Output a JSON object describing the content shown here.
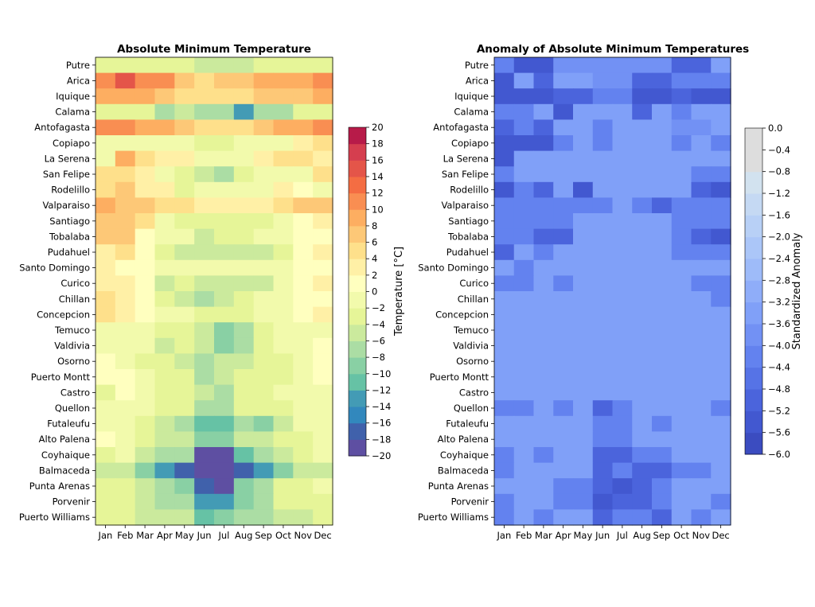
{
  "chart_data": [
    {
      "type": "heatmap",
      "title": "Absolute Minimum Temperature",
      "x_categories": [
        "Jan",
        "Feb",
        "Mar",
        "Apr",
        "May",
        "Jun",
        "Jul",
        "Aug",
        "Sep",
        "Oct",
        "Nov",
        "Dec"
      ],
      "y_categories": [
        "Putre",
        "Arica",
        "Iquique",
        "Calama",
        "Antofagasta",
        "Copiapo",
        "La Serena",
        "San Felipe",
        "Rodelillo",
        "Valparaiso",
        "Santiago",
        "Tobalaba",
        "Pudahuel",
        "Santo Domingo",
        "Curico",
        "Chillan",
        "Concepcion",
        "Temuco",
        "Valdivia",
        "Osorno",
        "Puerto Montt",
        "Castro",
        "Quellon",
        "Futaleufu",
        "Alto Palena",
        "Coyhaique",
        "Balmaceda",
        "Punta Arenas",
        "Porvenir",
        "Puerto Williams"
      ],
      "values": [
        [
          -3,
          -3,
          -4,
          -4,
          -4,
          -5,
          -5,
          -5,
          -4,
          -4,
          -4,
          -3
        ],
        [
          11,
          15,
          11,
          11,
          7,
          5,
          7,
          7,
          9,
          9,
          9,
          11
        ],
        [
          9,
          9,
          9,
          7,
          5,
          5,
          5,
          5,
          7,
          7,
          7,
          9
        ],
        [
          -3,
          -3,
          -3,
          -7,
          -5,
          -8,
          -8,
          -13,
          -7,
          -7,
          -3,
          -3
        ],
        [
          11,
          11,
          9,
          9,
          7,
          5,
          5,
          5,
          7,
          9,
          9,
          11
        ],
        [
          -1,
          -1,
          -1,
          -1,
          -1,
          -3,
          -3,
          -1,
          -1,
          -1,
          3,
          5
        ],
        [
          -1,
          9,
          5,
          3,
          3,
          -1,
          -1,
          -1,
          3,
          5,
          5,
          3
        ],
        [
          5,
          5,
          3,
          -2,
          -4,
          -5,
          -7,
          -4,
          -2,
          -1,
          -1,
          5
        ],
        [
          5,
          7,
          3,
          3,
          -4,
          -2,
          -2,
          -2,
          -2,
          3,
          1,
          -1
        ],
        [
          9,
          7,
          7,
          5,
          5,
          3,
          3,
          3,
          3,
          5,
          7,
          7
        ],
        [
          7,
          7,
          5,
          -2,
          -4,
          -4,
          -4,
          -4,
          -4,
          -1,
          1,
          3
        ],
        [
          7,
          7,
          1,
          -2,
          -1,
          -5,
          -3,
          -3,
          -1,
          -1,
          1,
          1
        ],
        [
          3,
          5,
          1,
          -3,
          -5,
          -6,
          -6,
          -6,
          -5,
          -3,
          1,
          3
        ],
        [
          3,
          1,
          1,
          -1,
          -2,
          -2,
          -2,
          -2,
          -2,
          -1,
          1,
          1
        ],
        [
          3,
          3,
          1,
          -6,
          -4,
          -6,
          -6,
          -6,
          -5,
          -1,
          1,
          3
        ],
        [
          5,
          3,
          1,
          -3,
          -5,
          -8,
          -6,
          -4,
          -2,
          -1,
          1,
          1
        ],
        [
          5,
          3,
          1,
          -1,
          -1,
          -3,
          -3,
          -3,
          -1,
          -1,
          1,
          3
        ],
        [
          -1,
          -1,
          -1,
          -4,
          -4,
          -6,
          -10,
          -7,
          -4,
          -2,
          -2,
          -1
        ],
        [
          -1,
          -1,
          -1,
          -5,
          -4,
          -6,
          -10,
          -7,
          -4,
          -2,
          -1,
          1
        ],
        [
          1,
          -1,
          -3,
          -4,
          -5,
          -8,
          -6,
          -5,
          -4,
          -3,
          -1,
          1
        ],
        [
          1,
          1,
          -1,
          -3,
          -4,
          -8,
          -6,
          -4,
          -4,
          -3,
          -1,
          1
        ],
        [
          -3,
          1,
          -1,
          -3,
          -4,
          -6,
          -8,
          -4,
          -3,
          -1,
          -1,
          -1
        ],
        [
          -1,
          -1,
          -1,
          -3,
          -4,
          -8,
          -8,
          -4,
          -4,
          -3,
          -2,
          -1
        ],
        [
          -1,
          -1,
          -3,
          -6,
          -8,
          -12,
          -12,
          -8,
          -10,
          -5,
          -2,
          -1
        ],
        [
          1,
          -1,
          -3,
          -6,
          -6,
          -10,
          -10,
          -6,
          -6,
          -3,
          -4,
          -1
        ],
        [
          -4,
          -1,
          -6,
          -8,
          -8,
          -20,
          -20,
          -12,
          -8,
          -5,
          -3,
          -1
        ],
        [
          -6,
          -6,
          -10,
          -14,
          -18,
          -20,
          -20,
          -18,
          -14,
          -10,
          -6,
          -6
        ],
        [
          -3,
          -3,
          -5,
          -8,
          -10,
          -18,
          -20,
          -10,
          -7,
          -4,
          -3,
          -1
        ],
        [
          -3,
          -4,
          -5,
          -7,
          -8,
          -14,
          -14,
          -10,
          -7,
          -4,
          -3,
          -3
        ],
        [
          -4,
          -4,
          -5,
          -5,
          -6,
          -12,
          -10,
          -8,
          -8,
          -5,
          -6,
          -3
        ]
      ],
      "colorbar": {
        "label": "Temperature [°C]",
        "vmin": -20,
        "vmax": 20,
        "step": 2,
        "ticks": [
          "20",
          "18",
          "16",
          "14",
          "12",
          "10",
          "8",
          "6",
          "4",
          "2",
          "0",
          "−2",
          "−4",
          "−6",
          "−8",
          "−10",
          "−12",
          "−14",
          "−16",
          "−18",
          "−20"
        ],
        "colors": [
          "#5e4fa2",
          "#4061ab",
          "#3288bd",
          "#439bb5",
          "#66c2a5",
          "#89d0a4",
          "#abdda4",
          "#cbea9d",
          "#e6f598",
          "#f2faac",
          "#ffffbf",
          "#fff0a6",
          "#fee08b",
          "#fdc877",
          "#fdae61",
          "#f98e52",
          "#f46d43",
          "#e45549",
          "#d53e4f",
          "#b71b49",
          "#9e0142"
        ],
        "colormap": "Spectral_r"
      }
    },
    {
      "type": "heatmap",
      "title": "Anomaly of Absolute Minimum Temperatures",
      "x_categories": [
        "Jan",
        "Feb",
        "Mar",
        "Apr",
        "May",
        "Jun",
        "Jul",
        "Aug",
        "Sep",
        "Oct",
        "Nov",
        "Dec"
      ],
      "y_categories": [
        "Putre",
        "Arica",
        "Iquique",
        "Calama",
        "Antofagasta",
        "Copiapo",
        "La Serena",
        "San Felipe",
        "Rodelillo",
        "Valparaiso",
        "Santiago",
        "Tobalaba",
        "Pudahuel",
        "Santo Domingo",
        "Curico",
        "Chillan",
        "Concepcion",
        "Temuco",
        "Valdivia",
        "Osorno",
        "Puerto Montt",
        "Castro",
        "Quellon",
        "Futaleufu",
        "Alto Palena",
        "Coyhaique",
        "Balmaceda",
        "Punta Arenas",
        "Porvenir",
        "Puerto Williams"
      ],
      "values": [
        [
          -4.2,
          -5.3,
          -5.3,
          -4.0,
          -4.0,
          -4.0,
          -4.0,
          -4.0,
          -4.0,
          -4.9,
          -4.9,
          -3.3
        ],
        [
          -5.3,
          -3.3,
          -4.9,
          -3.3,
          -3.3,
          -4.0,
          -4.0,
          -4.9,
          -4.9,
          -4.2,
          -4.2,
          -4.2
        ],
        [
          -5.3,
          -5.3,
          -5.3,
          -4.9,
          -4.9,
          -4.2,
          -4.2,
          -5.3,
          -5.3,
          -4.9,
          -5.3,
          -5.3
        ],
        [
          -4.2,
          -4.2,
          -3.6,
          -5.3,
          -3.3,
          -3.6,
          -3.6,
          -4.9,
          -3.6,
          -4.2,
          -3.6,
          -3.6
        ],
        [
          -4.9,
          -4.2,
          -4.9,
          -3.6,
          -3.6,
          -4.2,
          -3.6,
          -3.6,
          -3.6,
          -4.0,
          -4.0,
          -3.6
        ],
        [
          -5.3,
          -5.3,
          -5.3,
          -4.2,
          -3.6,
          -4.2,
          -3.6,
          -3.6,
          -3.6,
          -4.2,
          -3.6,
          -4.2
        ],
        [
          -5.3,
          -3.6,
          -3.6,
          -3.6,
          -3.6,
          -3.6,
          -3.6,
          -3.6,
          -3.6,
          -3.6,
          -3.6,
          -3.6
        ],
        [
          -4.2,
          -3.6,
          -3.6,
          -3.6,
          -3.3,
          -3.3,
          -3.6,
          -3.3,
          -3.6,
          -3.6,
          -4.2,
          -4.2
        ],
        [
          -5.6,
          -4.2,
          -4.9,
          -3.6,
          -5.6,
          -3.6,
          -3.6,
          -3.6,
          -3.6,
          -3.6,
          -4.9,
          -5.6
        ],
        [
          -4.2,
          -4.2,
          -4.2,
          -4.2,
          -4.2,
          -4.2,
          -3.6,
          -4.2,
          -4.9,
          -4.2,
          -4.2,
          -4.2
        ],
        [
          -4.2,
          -4.2,
          -4.2,
          -4.2,
          -3.6,
          -3.3,
          -3.3,
          -3.6,
          -3.6,
          -4.2,
          -4.2,
          -4.2
        ],
        [
          -4.2,
          -4.2,
          -4.9,
          -4.9,
          -3.6,
          -3.6,
          -3.3,
          -3.6,
          -3.6,
          -4.2,
          -4.9,
          -5.6
        ],
        [
          -4.9,
          -3.6,
          -4.2,
          -3.6,
          -3.6,
          -3.3,
          -3.3,
          -3.6,
          -3.6,
          -4.2,
          -4.2,
          -4.2
        ],
        [
          -3.6,
          -4.2,
          -3.6,
          -3.3,
          -3.6,
          -3.3,
          -3.3,
          -3.6,
          -3.6,
          -3.6,
          -3.6,
          -3.6
        ],
        [
          -4.2,
          -4.2,
          -3.6,
          -4.2,
          -3.3,
          -3.3,
          -3.3,
          -3.6,
          -3.6,
          -3.6,
          -4.2,
          -4.2
        ],
        [
          -3.6,
          -3.6,
          -3.6,
          -3.3,
          -3.6,
          -3.6,
          -3.3,
          -3.3,
          -3.3,
          -3.6,
          -3.6,
          -4.2
        ],
        [
          -3.6,
          -3.6,
          -3.6,
          -3.6,
          -3.3,
          -3.3,
          -3.3,
          -3.3,
          -3.3,
          -3.6,
          -3.6,
          -3.6
        ],
        [
          -3.6,
          -3.6,
          -3.3,
          -3.6,
          -3.6,
          -3.6,
          -3.6,
          -3.6,
          -3.3,
          -3.3,
          -3.6,
          -3.3
        ],
        [
          -3.6,
          -3.3,
          -3.3,
          -3.6,
          -3.6,
          -3.6,
          -3.6,
          -3.6,
          -3.3,
          -3.3,
          -3.3,
          -3.6
        ],
        [
          -3.3,
          -3.6,
          -3.3,
          -3.3,
          -3.6,
          -3.6,
          -3.6,
          -3.6,
          -3.6,
          -3.3,
          -3.3,
          -3.6
        ],
        [
          -3.6,
          -3.6,
          -3.3,
          -3.3,
          -3.6,
          -3.6,
          -3.3,
          -3.3,
          -3.3,
          -3.3,
          -3.3,
          -3.6
        ],
        [
          -3.6,
          -3.6,
          -3.3,
          -3.6,
          -3.6,
          -3.6,
          -3.3,
          -3.3,
          -3.3,
          -3.3,
          -3.3,
          -3.6
        ],
        [
          -4.2,
          -4.2,
          -3.6,
          -4.2,
          -3.6,
          -4.9,
          -4.2,
          -3.6,
          -3.6,
          -3.6,
          -3.6,
          -4.2
        ],
        [
          -3.6,
          -3.6,
          -3.3,
          -3.6,
          -3.6,
          -4.2,
          -4.2,
          -3.6,
          -4.2,
          -3.6,
          -3.3,
          -3.6
        ],
        [
          -3.6,
          -3.6,
          -3.6,
          -3.6,
          -3.6,
          -4.2,
          -4.2,
          -3.6,
          -3.6,
          -3.3,
          -3.6,
          -3.6
        ],
        [
          -4.2,
          -3.6,
          -4.2,
          -3.6,
          -3.6,
          -4.9,
          -4.9,
          -4.2,
          -4.2,
          -3.6,
          -3.6,
          -3.6
        ],
        [
          -4.2,
          -3.6,
          -3.6,
          -3.6,
          -3.6,
          -4.9,
          -4.2,
          -4.9,
          -4.9,
          -4.2,
          -4.2,
          -3.6
        ],
        [
          -3.6,
          -3.6,
          -3.6,
          -4.2,
          -4.2,
          -4.9,
          -5.6,
          -4.9,
          -4.2,
          -3.6,
          -3.6,
          -3.6
        ],
        [
          -4.2,
          -3.6,
          -3.6,
          -4.2,
          -4.2,
          -5.6,
          -4.9,
          -4.9,
          -4.2,
          -3.6,
          -3.6,
          -4.2
        ],
        [
          -4.2,
          -3.6,
          -4.2,
          -3.6,
          -3.6,
          -4.9,
          -4.2,
          -4.2,
          -4.9,
          -3.3,
          -4.2,
          -3.3
        ]
      ],
      "colorbar": {
        "label": "Standardized Anomaly",
        "vmin": -6.0,
        "vmax": 0.0,
        "step": 0.4,
        "ticks": [
          "0.0",
          "−0.4",
          "−0.8",
          "−1.2",
          "−1.6",
          "−2.0",
          "−2.4",
          "−2.8",
          "−3.2",
          "−3.6",
          "−4.0",
          "−4.4",
          "−4.8",
          "−5.2",
          "−5.6",
          "−6.0"
        ],
        "colors": [
          "#3b4cc0",
          "#4258d0",
          "#4b64dc",
          "#5673e6",
          "#6382ef",
          "#7291f4",
          "#80a0f8",
          "#8fadf9",
          "#9ebbf9",
          "#abc6f8",
          "#b8d0f6",
          "#c5d9f3",
          "#d2e2ef",
          "#dddddd",
          "#dddddd"
        ],
        "colormap": "coolwarm-blues"
      }
    }
  ]
}
